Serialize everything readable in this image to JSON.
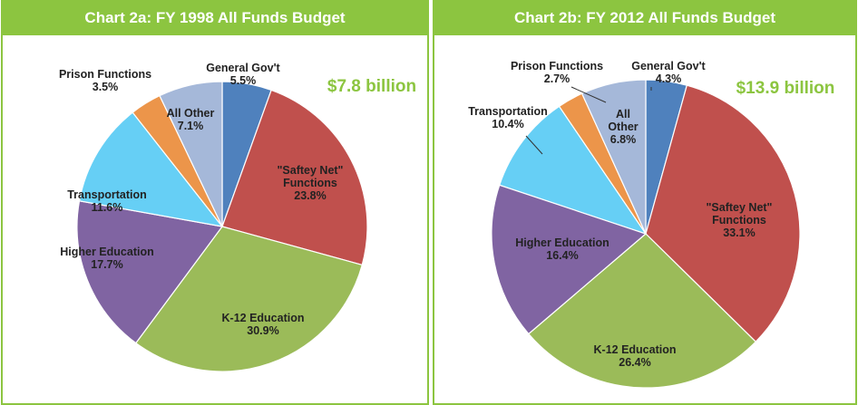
{
  "chart_data": [
    {
      "type": "pie",
      "title": "Chart 2a: FY 1998 All Funds Budget",
      "annotation": "$7.8 billion",
      "categories": [
        "General Gov't",
        "\"Saftey Net\" Functions",
        "K-12 Education",
        "Higher Education",
        "Transportation",
        "Prison Functions",
        "All Other"
      ],
      "values": [
        5.5,
        23.8,
        30.9,
        17.7,
        11.6,
        3.5,
        7.1
      ],
      "value_labels": [
        "5.5%",
        "23.8%",
        "30.9%",
        "17.7%",
        "11.6%",
        "3.5%",
        "7.1%"
      ],
      "colors": [
        "#4f81bd",
        "#c0504d",
        "#9bbb59",
        "#8064a2",
        "#66cff5",
        "#ec954a",
        "#a5b8d9"
      ]
    },
    {
      "type": "pie",
      "title": "Chart 2b: FY 2012 All Funds Budget",
      "annotation": "$13.9 billion",
      "categories": [
        "General Gov't",
        "\"Saftey Net\" Functions",
        "K-12 Education",
        "Higher Education",
        "Transportation",
        "Prison Functions",
        "All Other"
      ],
      "values": [
        4.3,
        33.1,
        26.4,
        16.4,
        10.4,
        2.7,
        6.8
      ],
      "value_labels": [
        "4.3%",
        "33.1%",
        "26.4%",
        "16.4%",
        "10.4%",
        "2.7%",
        "6.8%"
      ],
      "colors": [
        "#4f81bd",
        "#c0504d",
        "#9bbb59",
        "#8064a2",
        "#66cff5",
        "#ec954a",
        "#a5b8d9"
      ]
    }
  ]
}
